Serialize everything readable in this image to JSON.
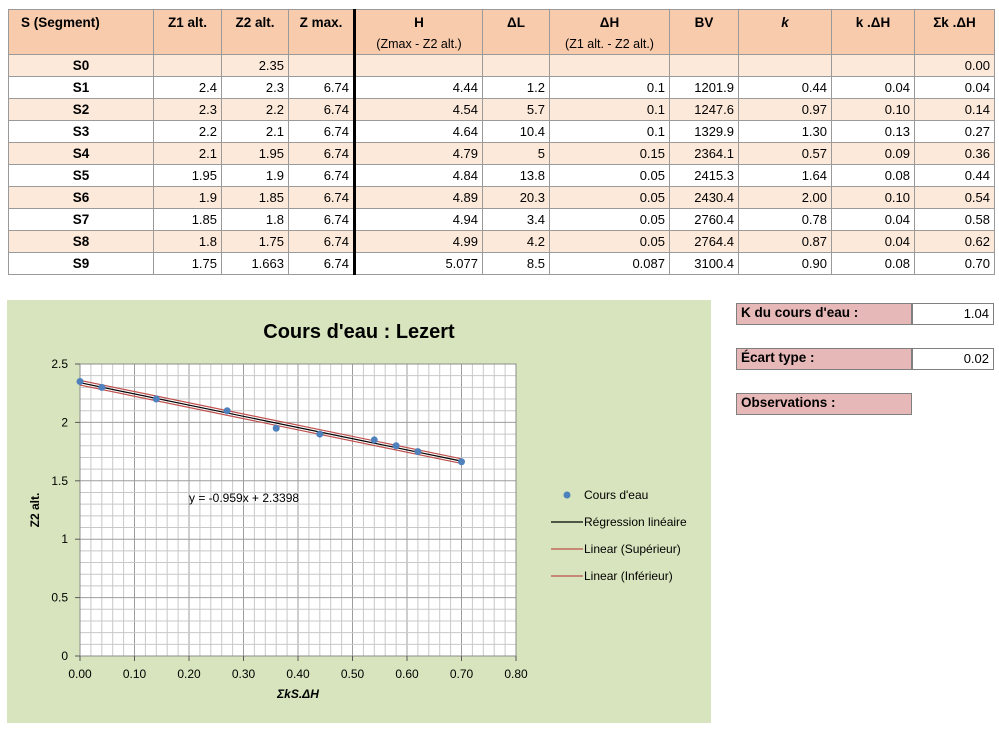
{
  "table": {
    "headers": [
      {
        "label": "S (Segment)",
        "sub": ""
      },
      {
        "label": "Z1 alt.",
        "sub": ""
      },
      {
        "label": "Z2 alt.",
        "sub": ""
      },
      {
        "label": "Z max.",
        "sub": ""
      },
      {
        "label": "H",
        "sub": "(Zmax - Z2 alt.)"
      },
      {
        "label": "ΔL",
        "sub": ""
      },
      {
        "label": "ΔH",
        "sub": "(Z1 alt. - Z2 alt.)"
      },
      {
        "label": "BV",
        "sub": ""
      },
      {
        "label": "k",
        "sub": ""
      },
      {
        "label": "k .ΔH",
        "sub": ""
      },
      {
        "label": "Σk .ΔH",
        "sub": ""
      }
    ],
    "rows": [
      [
        "S0",
        "",
        "2.35",
        "",
        "",
        "",
        "",
        "",
        "",
        "",
        "0.00"
      ],
      [
        "S1",
        "2.4",
        "2.3",
        "6.74",
        "4.44",
        "1.2",
        "0.1",
        "1201.9",
        "0.44",
        "0.04",
        "0.04"
      ],
      [
        "S2",
        "2.3",
        "2.2",
        "6.74",
        "4.54",
        "5.7",
        "0.1",
        "1247.6",
        "0.97",
        "0.10",
        "0.14"
      ],
      [
        "S3",
        "2.2",
        "2.1",
        "6.74",
        "4.64",
        "10.4",
        "0.1",
        "1329.9",
        "1.30",
        "0.13",
        "0.27"
      ],
      [
        "S4",
        "2.1",
        "1.95",
        "6.74",
        "4.79",
        "5",
        "0.15",
        "2364.1",
        "0.57",
        "0.09",
        "0.36"
      ],
      [
        "S5",
        "1.95",
        "1.9",
        "6.74",
        "4.84",
        "13.8",
        "0.05",
        "2415.3",
        "1.64",
        "0.08",
        "0.44"
      ],
      [
        "S6",
        "1.9",
        "1.85",
        "6.74",
        "4.89",
        "20.3",
        "0.05",
        "2430.4",
        "2.00",
        "0.10",
        "0.54"
      ],
      [
        "S7",
        "1.85",
        "1.8",
        "6.74",
        "4.94",
        "3.4",
        "0.05",
        "2760.4",
        "0.78",
        "0.04",
        "0.58"
      ],
      [
        "S8",
        "1.8",
        "1.75",
        "6.74",
        "4.99",
        "4.2",
        "0.05",
        "2764.4",
        "0.87",
        "0.04",
        "0.62"
      ],
      [
        "S9",
        "1.75",
        "1.663",
        "6.74",
        "5.077",
        "8.5",
        "0.087",
        "3100.4",
        "0.90",
        "0.08",
        "0.70"
      ]
    ]
  },
  "info": {
    "k_label": "K du cours d'eau :",
    "k_value": "1.04",
    "std_label": "Écart type :",
    "std_value": "0.02",
    "obs_label": "Observations :"
  },
  "chart_data": {
    "type": "scatter",
    "title": "Cours d'eau : Lezert",
    "xlabel": "ΣkS.ΔH",
    "ylabel": "Z2 alt.",
    "xlim": [
      0,
      0.8
    ],
    "ylim": [
      0,
      2.5
    ],
    "x_ticks": [
      "0.00",
      "0.10",
      "0.20",
      "0.30",
      "0.40",
      "0.50",
      "0.60",
      "0.70",
      "0.80"
    ],
    "y_ticks": [
      "0",
      "0.5",
      "1",
      "1.5",
      "2",
      "2.5"
    ],
    "grid": true,
    "legend_position": "right",
    "equation": "y = -0.959x + 2.3398",
    "series": [
      {
        "name": "Cours d'eau",
        "kind": "points",
        "color": "#4f81bd",
        "x": [
          0.0,
          0.04,
          0.14,
          0.27,
          0.36,
          0.44,
          0.54,
          0.58,
          0.62,
          0.7
        ],
        "y": [
          2.35,
          2.3,
          2.2,
          2.1,
          1.95,
          1.9,
          1.85,
          1.8,
          1.75,
          1.663
        ]
      },
      {
        "name": "Régression linéaire",
        "kind": "line",
        "color": "#000000",
        "x": [
          0.0,
          0.7
        ],
        "y": [
          2.3398,
          1.6685
        ]
      },
      {
        "name": "Linear (Supérieur)",
        "kind": "line",
        "color": "#c0504d",
        "x": [
          0.0,
          0.7
        ],
        "y": [
          2.3598,
          1.6885
        ]
      },
      {
        "name": "Linear (Inférieur)",
        "kind": "line",
        "color": "#c0504d",
        "x": [
          0.0,
          0.7
        ],
        "y": [
          2.3198,
          1.6485
        ]
      }
    ]
  }
}
